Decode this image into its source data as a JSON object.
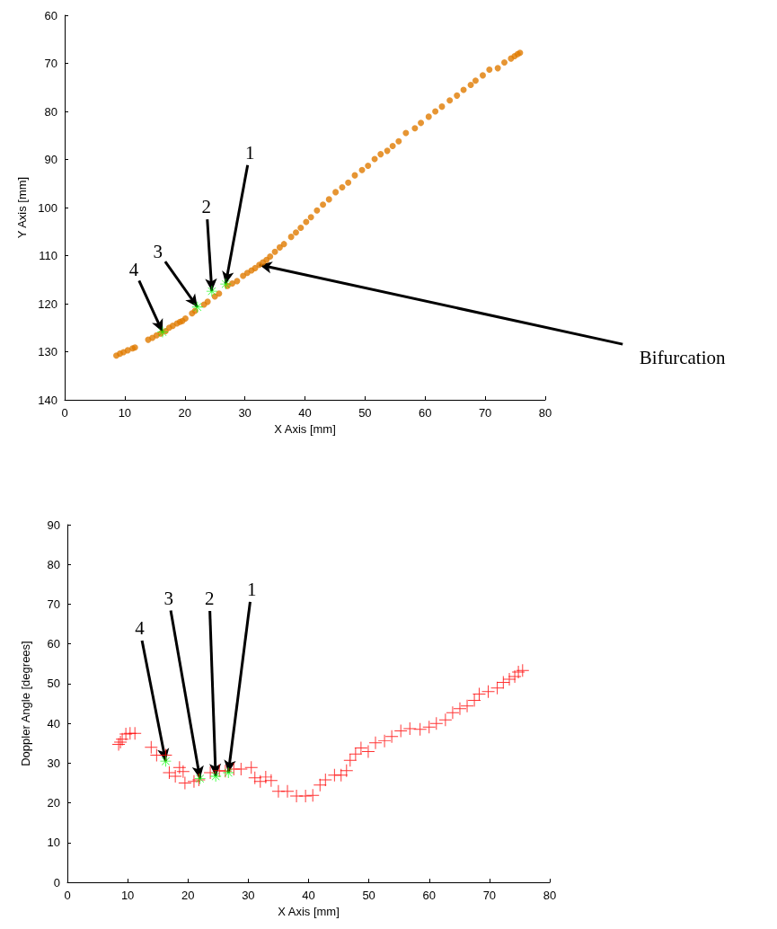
{
  "chart_data": [
    {
      "type": "scatter",
      "xlabel": "X Axis [mm]",
      "ylabel": "Y Axis [mm]",
      "xlim": [
        0,
        80
      ],
      "xticks": [
        0,
        10,
        20,
        30,
        40,
        50,
        60,
        70,
        80
      ],
      "ylim": [
        140,
        60
      ],
      "yticks": [
        60,
        70,
        80,
        90,
        100,
        110,
        120,
        130,
        140
      ],
      "grid": false,
      "series": [
        {
          "color": "#e07b00",
          "marker": "circle",
          "x": [
            8.6,
            9.2,
            9.8,
            10.5,
            11.3,
            11.7,
            13.9,
            14.6,
            15.3,
            16.0,
            16.8,
            17.4,
            18.0,
            18.7,
            19.2,
            19.6,
            20.1,
            21.2,
            21.7,
            23.2,
            23.8,
            25.0,
            25.7,
            27.1,
            27.9,
            28.7,
            29.7,
            30.4,
            31.1,
            31.7,
            32.4,
            33.0,
            33.6,
            34.2,
            35.0,
            35.8,
            36.5,
            37.7,
            38.5,
            39.3,
            40.2,
            41.0,
            42.0,
            43.0,
            44.0,
            45.1,
            46.2,
            47.2,
            48.3,
            49.5,
            50.5,
            51.6,
            52.6,
            53.7,
            54.6,
            55.6,
            56.8,
            58.3,
            59.3,
            60.6,
            61.7,
            62.8,
            64.1,
            65.3,
            66.4,
            67.6,
            68.4,
            69.6,
            70.7,
            72.1,
            73.2,
            74.3,
            74.9,
            75.4,
            75.8
          ],
          "values": [
            130.8,
            130.4,
            130.1,
            129.7,
            129.3,
            129.1,
            127.5,
            127.1,
            126.6,
            126.2,
            125.7,
            125.0,
            124.6,
            124.1,
            123.8,
            123.6,
            123.1,
            122.0,
            121.5,
            120.2,
            119.6,
            118.5,
            117.9,
            116.3,
            115.8,
            115.3,
            114.2,
            113.6,
            113.1,
            112.6,
            111.9,
            111.4,
            110.9,
            110.2,
            109.2,
            108.3,
            107.6,
            106.1,
            105.2,
            104.2,
            103.0,
            102.0,
            100.6,
            99.4,
            98.3,
            96.8,
            95.8,
            94.8,
            93.3,
            92.2,
            91.3,
            89.9,
            88.9,
            88.2,
            87.2,
            86.2,
            84.5,
            83.5,
            82.4,
            81.1,
            80.0,
            79.0,
            77.7,
            76.7,
            75.5,
            74.5,
            73.6,
            72.5,
            71.3,
            71.0,
            69.8,
            69.0,
            68.5,
            68.1,
            67.8
          ]
        },
        {
          "color": "#00ff00",
          "marker": "star",
          "x": [
            26.8,
            24.5,
            22.1,
            16.3
          ],
          "values": [
            115.9,
            117.4,
            120.7,
            125.9
          ]
        }
      ],
      "annotations": [
        {
          "text": "1",
          "x": 26.8,
          "y": 115.9
        },
        {
          "text": "2",
          "x": 24.5,
          "y": 117.4
        },
        {
          "text": "3",
          "x": 22.1,
          "y": 120.7
        },
        {
          "text": "4",
          "x": 16.3,
          "y": 125.9
        },
        {
          "text": "Bifurcation",
          "x": 32.4,
          "y": 111.9
        }
      ]
    },
    {
      "type": "scatter",
      "xlabel": "X Axis [mm]",
      "ylabel": "Doppler Angle [degrees]",
      "xlim": [
        0,
        80
      ],
      "xticks": [
        0,
        10,
        20,
        30,
        40,
        50,
        60,
        70,
        80
      ],
      "ylim": [
        0,
        90
      ],
      "yticks": [
        0,
        10,
        20,
        30,
        40,
        50,
        60,
        70,
        80,
        90
      ],
      "grid": false,
      "series": [
        {
          "color": "#ff0000",
          "marker": "cross",
          "x": [
            8.5,
            8.8,
            9.1,
            9.7,
            10.4,
            11.2,
            13.9,
            14.8,
            16.3,
            16.9,
            17.9,
            18.6,
            19.2,
            19.5,
            21.0,
            21.8,
            23.7,
            25.2,
            26.2,
            27.6,
            28.8,
            30.5,
            31.1,
            32.0,
            32.9,
            33.8,
            35.0,
            36.5,
            38.0,
            39.5,
            40.7,
            41.9,
            42.8,
            44.3,
            45.4,
            46.3,
            46.9,
            47.8,
            48.7,
            49.9,
            51.1,
            52.6,
            53.8,
            55.3,
            56.8,
            58.5,
            60.0,
            61.2,
            62.7,
            63.9,
            65.1,
            66.3,
            67.5,
            68.3,
            69.8,
            71.3,
            72.3,
            73.3,
            74.2,
            74.8,
            75.5
          ],
          "values": [
            34.7,
            35.3,
            36.0,
            37.3,
            37.5,
            37.5,
            34.0,
            32.0,
            32.0,
            27.6,
            26.7,
            28.9,
            27.9,
            25.0,
            25.4,
            25.8,
            27.6,
            28.1,
            28.0,
            28.5,
            28.5,
            28.9,
            26.3,
            25.4,
            26.5,
            25.6,
            22.9,
            22.9,
            21.7,
            21.7,
            21.9,
            24.5,
            25.8,
            27.0,
            27.0,
            28.1,
            30.7,
            32.3,
            33.8,
            32.9,
            35.1,
            35.6,
            36.7,
            38.1,
            38.7,
            38.5,
            39.1,
            40.0,
            40.9,
            42.7,
            43.7,
            44.4,
            45.8,
            47.4,
            48.0,
            48.9,
            50.3,
            51.1,
            51.8,
            52.9,
            53.3
          ]
        },
        {
          "color": "#00ff00",
          "marker": "star",
          "x": [
            26.7,
            24.6,
            22.0,
            16.3
          ],
          "values": [
            27.6,
            26.7,
            26.1,
            30.5
          ]
        }
      ],
      "annotations": [
        {
          "text": "1",
          "x": 26.7,
          "y": 27.6
        },
        {
          "text": "2",
          "x": 24.6,
          "y": 26.7
        },
        {
          "text": "3",
          "x": 22.0,
          "y": 26.1
        },
        {
          "text": "4",
          "x": 16.3,
          "y": 30.5
        }
      ]
    }
  ]
}
